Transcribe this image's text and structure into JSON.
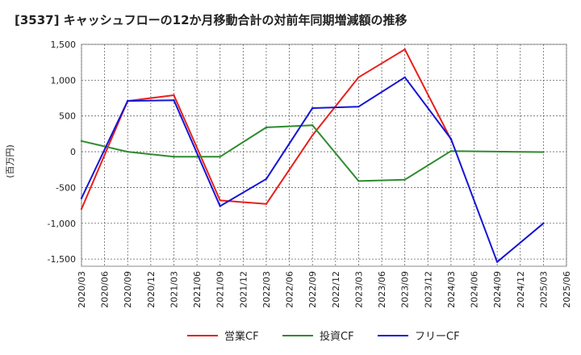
{
  "chart_data": {
    "type": "line",
    "title": "[3537]  キャッシュフローの12か月移動合計の対前年同期増減額の推移",
    "ylabel": "(百万円)",
    "xlabel": "",
    "ylim": [
      -1600,
      1500
    ],
    "yticks": [
      1500,
      1000,
      500,
      0,
      -500,
      -1000,
      -1500
    ],
    "ytick_labels": [
      "1,500",
      "1,000",
      "500",
      "0",
      "-500",
      "-1,000",
      "-1,500"
    ],
    "categories": [
      "2020/03",
      "2020/06",
      "2020/09",
      "2020/12",
      "2021/03",
      "2021/06",
      "2021/09",
      "2021/12",
      "2022/03",
      "2022/06",
      "2022/09",
      "2022/12",
      "2023/03",
      "2023/06",
      "2023/09",
      "2023/12",
      "2024/03",
      "2024/06",
      "2024/09",
      "2024/12",
      "2025/03",
      "2025/06"
    ],
    "grid": true,
    "legend_position": "bottom-center",
    "series": [
      {
        "name": "営業CF",
        "color": "#e8201a",
        "values": [
          -800,
          null,
          710,
          null,
          790,
          null,
          -680,
          null,
          -730,
          null,
          230,
          null,
          1040,
          null,
          1430,
          null,
          170,
          null,
          null,
          null,
          null,
          null
        ]
      },
      {
        "name": "投資CF",
        "color": "#2e8b2e",
        "values": [
          150,
          null,
          0,
          null,
          -70,
          null,
          -70,
          null,
          340,
          null,
          370,
          null,
          -410,
          null,
          -390,
          null,
          10,
          null,
          null,
          null,
          -5,
          null
        ]
      },
      {
        "name": "フリーCF",
        "color": "#1515d6",
        "values": [
          -650,
          null,
          710,
          null,
          720,
          null,
          -760,
          null,
          -380,
          null,
          610,
          null,
          630,
          null,
          1040,
          null,
          180,
          null,
          -1540,
          null,
          -1000,
          null
        ]
      }
    ]
  }
}
